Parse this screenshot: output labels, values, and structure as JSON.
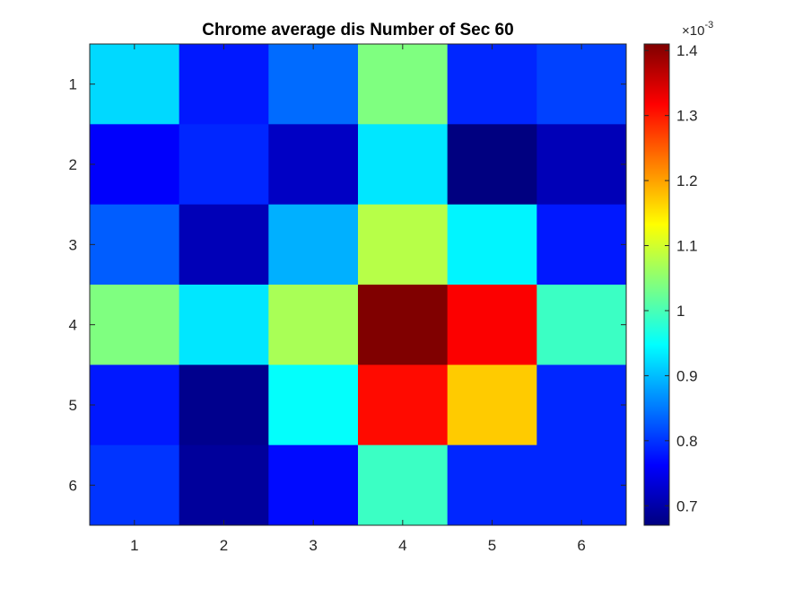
{
  "chart_data": {
    "type": "heatmap",
    "title": "Chrome average dis Number of Sec 60",
    "xlabel": "",
    "ylabel": "",
    "x_ticks": [
      "1",
      "2",
      "3",
      "4",
      "5",
      "6"
    ],
    "y_ticks": [
      "1",
      "2",
      "3",
      "4",
      "5",
      "6"
    ],
    "colormap": "jet",
    "color_range": [
      0.00067,
      0.00141
    ],
    "colorbar": {
      "exponent_label": "×10",
      "exponent": "-3",
      "ticks": [
        {
          "label": "0.7",
          "value": 0.0007
        },
        {
          "label": "0.8",
          "value": 0.0008
        },
        {
          "label": "0.9",
          "value": 0.0009
        },
        {
          "label": "1",
          "value": 0.001
        },
        {
          "label": "1.1",
          "value": 0.0011
        },
        {
          "label": "1.2",
          "value": 0.0012
        },
        {
          "label": "1.3",
          "value": 0.0013
        },
        {
          "label": "1.4",
          "value": 0.0014
        }
      ]
    },
    "values": [
      [
        0.00092,
        0.00078,
        0.00084,
        0.00104,
        0.00079,
        0.00081
      ],
      [
        0.00076,
        0.00079,
        0.00072,
        0.00093,
        0.00067,
        0.00071
      ],
      [
        0.00083,
        0.00071,
        0.00089,
        0.00108,
        0.00094,
        0.00078
      ],
      [
        0.00104,
        0.00093,
        0.00107,
        0.00141,
        0.00132,
        0.00099
      ],
      [
        0.00078,
        0.00068,
        0.00095,
        0.00131,
        0.00117,
        0.00079
      ],
      [
        0.0008,
        0.00069,
        0.00077,
        0.00099,
        0.00079,
        0.00079
      ]
    ]
  }
}
